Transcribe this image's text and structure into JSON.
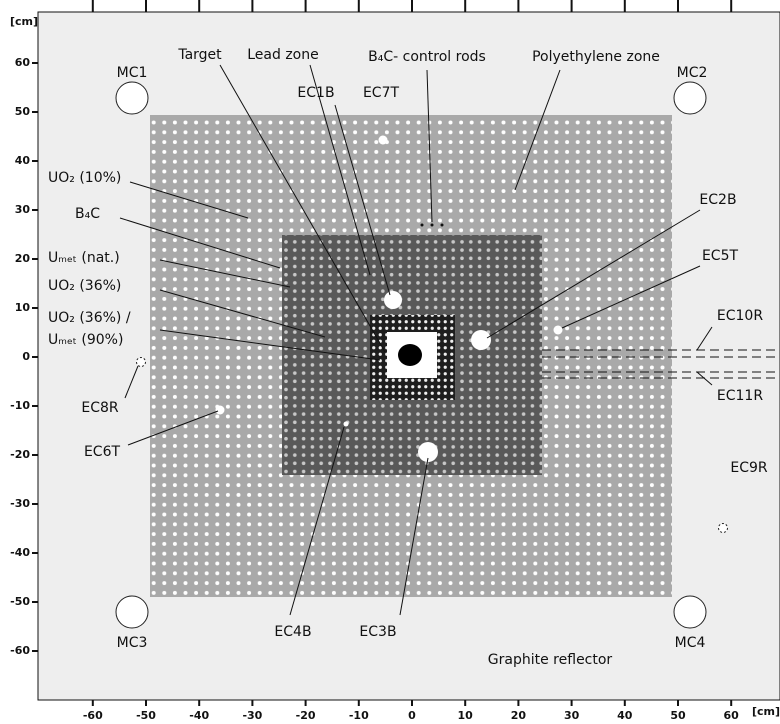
{
  "axes": {
    "y_unit": "[cm]",
    "x_unit": "[cm]",
    "xticks": [
      -60,
      -50,
      -40,
      -30,
      -20,
      -10,
      0,
      10,
      20,
      30,
      40,
      50,
      60
    ],
    "yticks": [
      60,
      50,
      40,
      30,
      20,
      10,
      0,
      -10,
      -20,
      -30,
      -40,
      -50,
      -60
    ]
  },
  "labels": {
    "target": "Target",
    "lead_zone": "Lead zone",
    "b4c_rods": "B₄C- control rods",
    "polyethylene_zone": "Polyethylene zone",
    "ec1b": "EC1B",
    "ec7t": "EC7T",
    "ec2b": "EC2B",
    "ec5t": "EC5T",
    "ec10r": "EC10R",
    "ec11r": "EC11R",
    "uo2_10": "UO₂ (10%)",
    "b4c": "B₄C",
    "umet_nat": "Uₘₑₜ (nat.)",
    "uo2_36": "UO₂ (36%)",
    "uo2_36_umet_line1": "UO₂ (36%) /",
    "uo2_36_umet_line2": "Uₘₑₜ (90%)",
    "ec8r": "EC8R",
    "ec6t": "EC6T",
    "ec4b": "EC4B",
    "ec3b": "EC3B",
    "ec9r": "EC9R",
    "graphite_reflector": "Graphite reflector",
    "mc1": "MC1",
    "mc2": "MC2",
    "mc3": "MC3",
    "mc4": "MC4"
  }
}
